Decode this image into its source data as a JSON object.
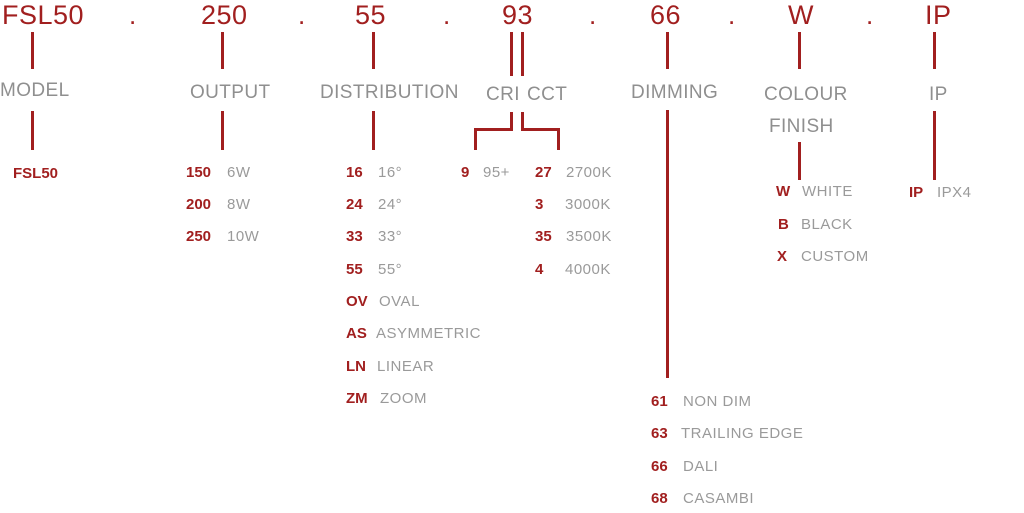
{
  "top_codes": [
    "FSL50",
    "250",
    "55",
    "93",
    "66",
    "W",
    "IP"
  ],
  "separator": ".",
  "headers": {
    "model": "MODEL",
    "output": "OUTPUT",
    "distribution": "DISTRIBUTION",
    "cri": "CRI",
    "cct": "CCT",
    "dimming": "DIMMING",
    "colour_line1": "COLOUR",
    "colour_line2": "FINISH",
    "ip": "IP"
  },
  "model_options": [
    {
      "code": "FSL50",
      "desc": ""
    }
  ],
  "output_options": [
    {
      "code": "150",
      "desc": "6W"
    },
    {
      "code": "200",
      "desc": "8W"
    },
    {
      "code": "250",
      "desc": "10W"
    }
  ],
  "distribution_options": [
    {
      "code": "16",
      "desc": "16°"
    },
    {
      "code": "24",
      "desc": "24°"
    },
    {
      "code": "33",
      "desc": "33°"
    },
    {
      "code": "55",
      "desc": "55°"
    },
    {
      "code": "OV",
      "desc": "OVAL"
    },
    {
      "code": "AS",
      "desc": "ASYMMETRIC"
    },
    {
      "code": "LN",
      "desc": "LINEAR"
    },
    {
      "code": "ZM",
      "desc": "ZOOM"
    }
  ],
  "cri_options": [
    {
      "code": "9",
      "desc": "95+"
    }
  ],
  "cct_options": [
    {
      "code": "27",
      "desc": "2700K"
    },
    {
      "code": "3",
      "desc": "3000K"
    },
    {
      "code": "35",
      "desc": "3500K"
    },
    {
      "code": "4",
      "desc": "4000K"
    }
  ],
  "dimming_options": [
    {
      "code": "61",
      "desc": "NON DIM"
    },
    {
      "code": "63",
      "desc": "TRAILING EDGE"
    },
    {
      "code": "66",
      "desc": "DALI"
    },
    {
      "code": "68",
      "desc": "CASAMBI"
    }
  ],
  "colour_options": [
    {
      "code": "W",
      "desc": "WHITE"
    },
    {
      "code": "B",
      "desc": "BLACK"
    },
    {
      "code": "X",
      "desc": "CUSTOM"
    }
  ],
  "ip_options": [
    {
      "code": "IP",
      "desc": "IPX4"
    }
  ],
  "colors": {
    "accent": "#a11f1f",
    "text_grey": "#9a9a9a"
  }
}
